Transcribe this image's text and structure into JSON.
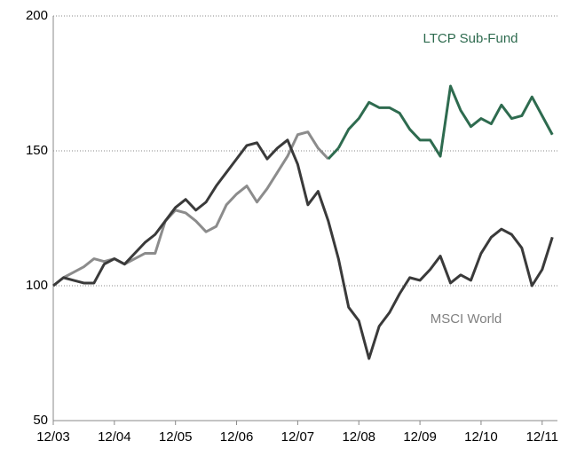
{
  "chart_data": {
    "type": "line",
    "x": [
      0,
      2,
      4,
      6,
      8,
      10,
      12,
      14,
      16,
      18,
      20,
      22,
      24,
      26,
      28,
      30,
      32,
      34,
      36,
      38,
      40,
      42,
      44,
      46,
      48,
      50,
      52,
      54,
      56,
      58,
      60,
      62,
      64,
      66,
      68,
      70,
      72,
      74,
      76,
      78,
      80,
      82,
      84,
      86,
      88,
      90,
      92,
      94,
      96,
      98
    ],
    "series": [
      {
        "name": "LTCP Sub-Fund",
        "color": "#2e6b4f",
        "pre_color": "#8c8c8c",
        "color_change_x": 56,
        "values": [
          100,
          103,
          105,
          107,
          110,
          109,
          110,
          108,
          110,
          112,
          112,
          124,
          128,
          127,
          124,
          120,
          122,
          130,
          134,
          137,
          131,
          136,
          142,
          148,
          156,
          157,
          151,
          147,
          151,
          158,
          162,
          168,
          166,
          166,
          164,
          158,
          154,
          154,
          148,
          174,
          165,
          159,
          162,
          160,
          167,
          162,
          163,
          170,
          163,
          156
        ]
      },
      {
        "name": "MSCI World",
        "color": "#3a3a3a",
        "label_color": "#808080",
        "values": [
          100,
          103,
          102,
          101,
          101,
          108,
          110,
          108,
          112,
          116,
          119,
          124,
          129,
          132,
          128,
          131,
          137,
          142,
          147,
          152,
          153,
          147,
          151,
          154,
          145,
          130,
          135,
          124,
          110,
          92,
          87,
          73,
          85,
          90,
          97,
          103,
          102,
          106,
          111,
          101,
          104,
          102,
          112,
          118,
          121,
          119,
          114,
          100,
          106,
          118
        ]
      }
    ],
    "xlim": [
      0,
      99
    ],
    "xticks": [
      {
        "value": 0,
        "label": "12/03"
      },
      {
        "value": 12,
        "label": "12/04"
      },
      {
        "value": 24,
        "label": "12/05"
      },
      {
        "value": 36,
        "label": "12/06"
      },
      {
        "value": 48,
        "label": "12/07"
      },
      {
        "value": 60,
        "label": "12/08"
      },
      {
        "value": 72,
        "label": "12/09"
      },
      {
        "value": 84,
        "label": "12/10"
      },
      {
        "value": 96,
        "label": "12/11"
      }
    ],
    "ylim": [
      50,
      200
    ],
    "yticks": [
      50,
      100,
      150,
      200
    ],
    "grid": true
  }
}
